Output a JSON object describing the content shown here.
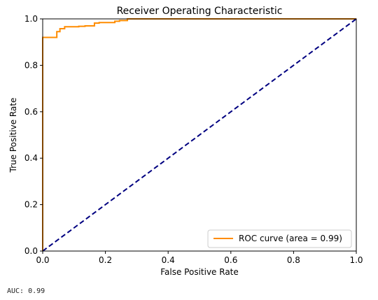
{
  "chart_data": {
    "type": "line",
    "title": "Receiver Operating Characteristic",
    "xlabel": "False Positive Rate",
    "ylabel": "True Positive Rate",
    "xlim": [
      0.0,
      1.0
    ],
    "ylim": [
      0.0,
      1.0
    ],
    "xticks": [
      "0.0",
      "0.2",
      "0.4",
      "0.6",
      "0.8",
      "1.0"
    ],
    "yticks": [
      "0.0",
      "0.2",
      "0.4",
      "0.6",
      "0.8",
      "1.0"
    ],
    "grid": false,
    "legend_position": "lower right",
    "series": [
      {
        "name": "ROC curve (area = 0.99)",
        "color": "#ff8c00",
        "style": "solid",
        "x": [
          0.0,
          0.0,
          0.0,
          0.045,
          0.045,
          0.055,
          0.055,
          0.07,
          0.07,
          0.1,
          0.1,
          0.115,
          0.115,
          0.125,
          0.125,
          0.135,
          0.135,
          0.165,
          0.165,
          0.18,
          0.18,
          0.23,
          0.23,
          0.245,
          0.245,
          0.27,
          0.27,
          1.0
        ],
        "y": [
          0.0,
          0.0,
          0.92,
          0.92,
          0.945,
          0.945,
          0.958,
          0.958,
          0.966,
          0.966,
          0.966,
          0.966,
          0.968,
          0.968,
          0.968,
          0.968,
          0.97,
          0.97,
          0.982,
          0.982,
          0.984,
          0.984,
          0.99,
          0.99,
          0.993,
          0.993,
          1.0,
          1.0
        ]
      },
      {
        "name": "",
        "color": "#000080",
        "style": "dashed",
        "x": [
          0.0,
          1.0
        ],
        "y": [
          0.0,
          1.0
        ]
      }
    ]
  },
  "footer": {
    "auc_text": "AUC: 0.99"
  }
}
